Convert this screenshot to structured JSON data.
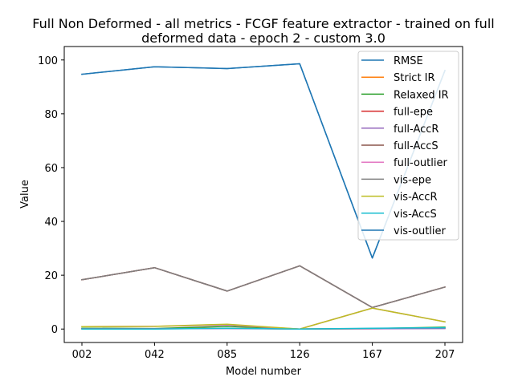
{
  "chart_data": {
    "type": "line",
    "title": "Full Non Deformed - all metrics - FCGF feature extractor -  trained on full deformed data -  epoch 2 - custom 3.0",
    "title_lines": [
      "Full Non Deformed - all metrics - FCGF feature extractor -  trained on full",
      "deformed data -  epoch 2 - custom 3.0"
    ],
    "xlabel": "Model number",
    "ylabel": "Value",
    "categories": [
      "002",
      "042",
      "085",
      "126",
      "167",
      "207"
    ],
    "ylim": [
      -5,
      105
    ],
    "yticks": [
      0,
      20,
      40,
      60,
      80,
      100
    ],
    "grid": false,
    "legend_position": "top-right",
    "series": [
      {
        "name": "RMSE",
        "color": "#1f77b4",
        "values": [
          94.7,
          97.5,
          96.8,
          98.6,
          26.4,
          96.1
        ]
      },
      {
        "name": "Strict IR",
        "color": "#ff7f0e",
        "values": [
          0.2,
          0.1,
          0.3,
          0.0,
          0.1,
          0.3
        ]
      },
      {
        "name": "Relaxed IR",
        "color": "#2ca02c",
        "values": [
          0.3,
          0.2,
          1.0,
          0.0,
          0.2,
          0.7
        ]
      },
      {
        "name": "full-epe",
        "color": "#d62728",
        "values": [
          18.3,
          22.8,
          14.1,
          23.5,
          8.0,
          15.6
        ]
      },
      {
        "name": "full-AccR",
        "color": "#9467bd",
        "values": [
          0.1,
          0.1,
          0.2,
          0.0,
          0.1,
          0.2
        ]
      },
      {
        "name": "full-AccS",
        "color": "#8c564b",
        "values": [
          18.3,
          22.8,
          14.1,
          23.5,
          8.0,
          15.6
        ]
      },
      {
        "name": "full-outlier",
        "color": "#e377c2",
        "values": [
          0.9,
          1.0,
          1.5,
          0.0,
          7.8,
          2.7
        ]
      },
      {
        "name": "vis-epe",
        "color": "#7f7f7f",
        "values": [
          18.3,
          22.8,
          14.1,
          23.5,
          8.0,
          15.6
        ]
      },
      {
        "name": "vis-AccR",
        "color": "#bcbd22",
        "values": [
          0.9,
          1.0,
          1.8,
          0.0,
          7.8,
          2.7
        ]
      },
      {
        "name": "vis-AccS",
        "color": "#17becf",
        "values": [
          0.0,
          0.0,
          0.3,
          0.0,
          0.3,
          0.5
        ]
      },
      {
        "name": "vis-outlier",
        "color": "#1f77b4",
        "values": [
          94.7,
          97.5,
          96.8,
          98.6,
          26.4,
          96.1
        ]
      }
    ]
  }
}
